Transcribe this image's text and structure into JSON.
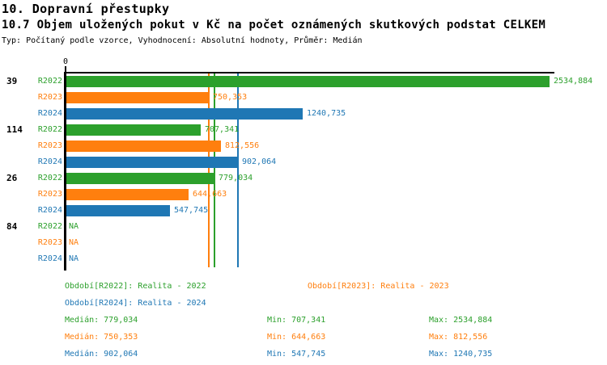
{
  "header": {
    "title": "10. Dopravní přestupky",
    "subtitle": "10.7 Objem uložených pokut v Kč na počet oznámených skutkových podstat CELKEM",
    "meta": "Typ: Počítaný podle vzorce, Vyhodnocení: Absolutní hodnoty, Průměr: Medián"
  },
  "colors": {
    "r2022": "#2ca02c",
    "r2023": "#ff7f0e",
    "r2024": "#1f77b4",
    "axis": "#000000",
    "background": "#ffffff"
  },
  "chart_data": {
    "type": "bar",
    "orientation": "horizontal",
    "title": "10.7 Objem uložených pokut v Kč na počet oznámených skutkových podstat CELKEM",
    "xlabel": "",
    "ylabel": "",
    "x_axis": {
      "min": 0,
      "tick_labels": [
        "0"
      ],
      "grid": false,
      "max_rendered_value": 2534.884
    },
    "series_labels": [
      "R2022",
      "R2023",
      "R2024"
    ],
    "groups": [
      {
        "label": "39",
        "bars": [
          {
            "series": "R2022",
            "value": 2534.884,
            "display": "2534,884"
          },
          {
            "series": "R2023",
            "value": 750.353,
            "display": "750,353"
          },
          {
            "series": "R2024",
            "value": 1240.735,
            "display": "1240,735"
          }
        ]
      },
      {
        "label": "114",
        "bars": [
          {
            "series": "R2022",
            "value": 707.341,
            "display": "707,341"
          },
          {
            "series": "R2023",
            "value": 812.556,
            "display": "812,556"
          },
          {
            "series": "R2024",
            "value": 902.064,
            "display": "902,064"
          }
        ]
      },
      {
        "label": "26",
        "bars": [
          {
            "series": "R2022",
            "value": 779.034,
            "display": "779,034"
          },
          {
            "series": "R2023",
            "value": 644.663,
            "display": "644,663"
          },
          {
            "series": "R2024",
            "value": 547.745,
            "display": "547,745"
          }
        ]
      },
      {
        "label": "84",
        "bars": [
          {
            "series": "R2022",
            "value": null,
            "display": "NA"
          },
          {
            "series": "R2023",
            "value": null,
            "display": "NA"
          },
          {
            "series": "R2024",
            "value": null,
            "display": "NA"
          }
        ]
      }
    ],
    "median_lines": [
      {
        "series": "R2022",
        "value": 779.034
      },
      {
        "series": "R2023",
        "value": 750.353
      },
      {
        "series": "R2024",
        "value": 902.064
      }
    ]
  },
  "legend": {
    "periods": [
      {
        "series": "R2022",
        "label": "Období[R2022]: Realita - 2022"
      },
      {
        "series": "R2023",
        "label": "Období[R2023]: Realita - 2023"
      },
      {
        "series": "R2024",
        "label": "Období[R2024]: Realita - 2024"
      }
    ],
    "stats": [
      {
        "series": "R2022",
        "median": "Medián: 779,034",
        "min": "Min: 707,341",
        "max": "Max: 2534,884"
      },
      {
        "series": "R2023",
        "median": "Medián: 750,353",
        "min": "Min: 644,663",
        "max": "Max: 812,556"
      },
      {
        "series": "R2024",
        "median": "Medián: 902,064",
        "min": "Min: 547,745",
        "max": "Max: 1240,735"
      }
    ]
  }
}
